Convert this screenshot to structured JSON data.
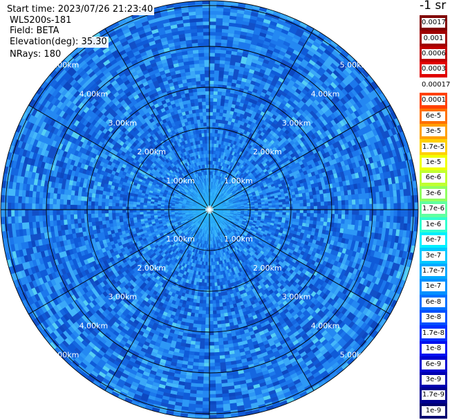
{
  "header": {
    "start_time": "Start time: 2023/07/26 21:23:40",
    "instrument": "WLS200s-181",
    "field": "Field: BETA",
    "elevation": "Elevation(deg): 35.30",
    "nrays": "NRays: 180"
  },
  "colorbar": {
    "unit": "-1 sr",
    "labels": [
      "0.0017",
      "0.001",
      "0.0006",
      "0.0003",
      "0.00017",
      "0.0001",
      "6e-5",
      "3e-5",
      "1.7e-5",
      "1e-5",
      "6e-6",
      "3e-6",
      "1.7e-6",
      "1e-6",
      "6e-7",
      "3e-7",
      "1.7e-7",
      "1e-7",
      "6e-8",
      "3e-8",
      "1.7e-8",
      "1e-8",
      "6e-9",
      "3e-9",
      "1.7e-9",
      "1e-9"
    ],
    "colors": [
      "#800000",
      "#a00000",
      "#c00000",
      "#e00000",
      "#ffffff",
      "#ff4000",
      "#ff7000",
      "#ffa000",
      "#ffd000",
      "#f0ff00",
      "#c0ff30",
      "#90ff60",
      "#60ffa0",
      "#30ffd0",
      "#00f0ff",
      "#00c8ff",
      "#00a8ff",
      "#0090ff",
      "#0070ff",
      "#0050ff",
      "#0030ff",
      "#0010f0",
      "#0000d0",
      "#0000b0",
      "#000090",
      "#000070"
    ]
  },
  "rings": {
    "labels": [
      "1.00km",
      "2.00km",
      "3.00km",
      "4.00km",
      "5.00km"
    ]
  },
  "plot": {
    "background_color": "#1a6ee6",
    "grid_color": "#000000"
  }
}
